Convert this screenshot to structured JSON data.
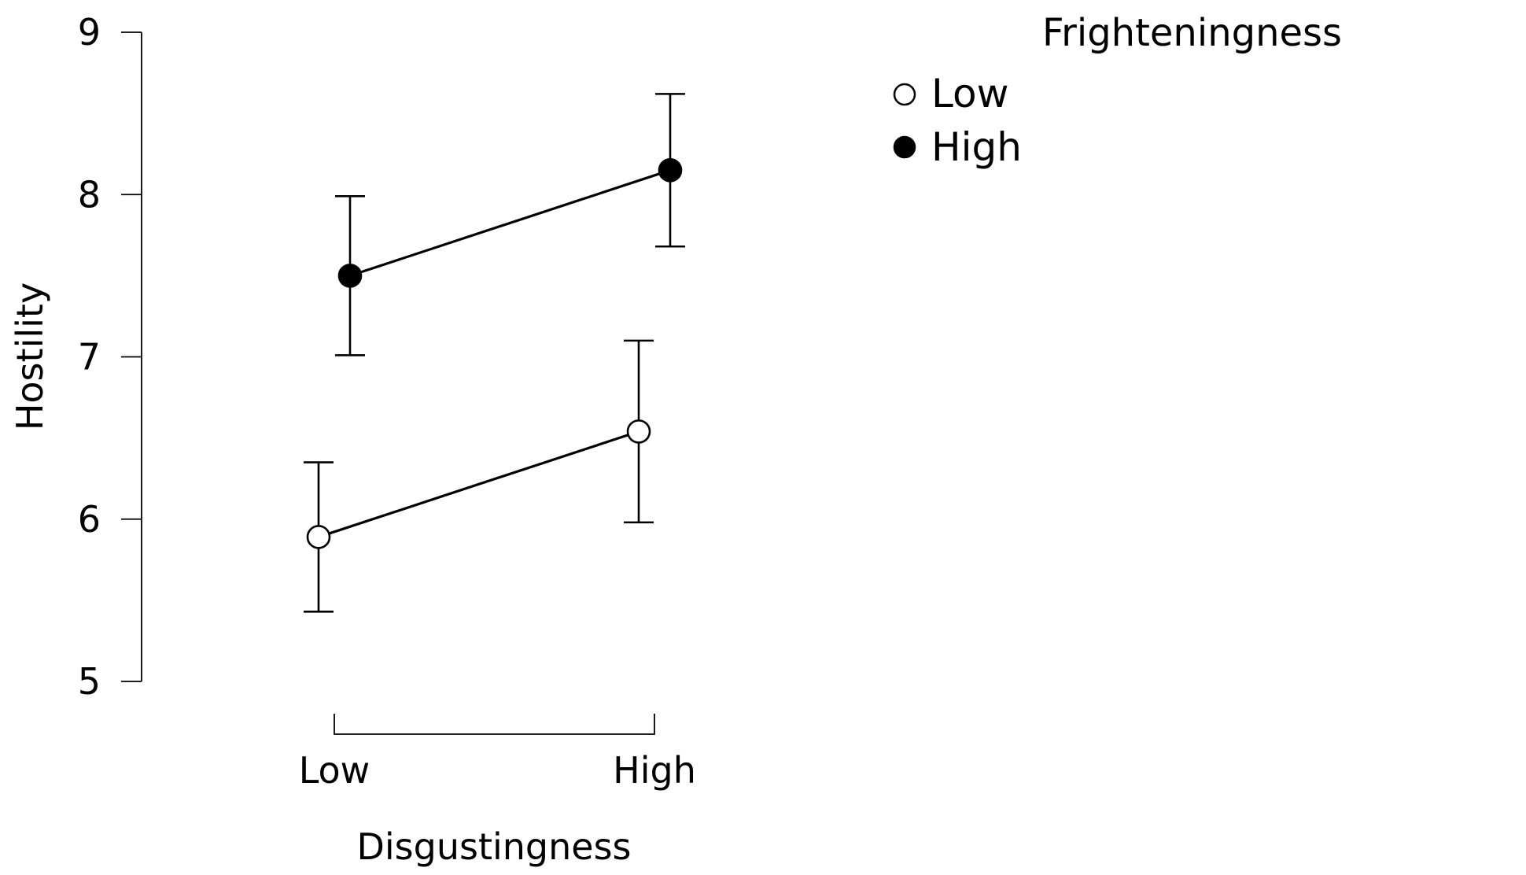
{
  "chart_data": {
    "type": "line",
    "xlabel": "Disgustingness",
    "ylabel": "Hostility",
    "categories": [
      "Low",
      "High"
    ],
    "ylim": [
      5,
      9
    ],
    "yticks": [
      "5",
      "6",
      "7",
      "8",
      "9"
    ],
    "grid": false,
    "legend": {
      "title": "Frighteningness",
      "placement": "top-right"
    },
    "series": [
      {
        "name": "Low",
        "marker": "open-circle",
        "values": [
          5.89,
          6.54
        ],
        "error_low": [
          5.43,
          5.98
        ],
        "error_high": [
          6.35,
          7.1
        ]
      },
      {
        "name": "High",
        "marker": "filled-circle",
        "values": [
          7.5,
          8.15
        ],
        "error_low": [
          7.01,
          7.68
        ],
        "error_high": [
          7.99,
          8.62
        ]
      }
    ]
  }
}
